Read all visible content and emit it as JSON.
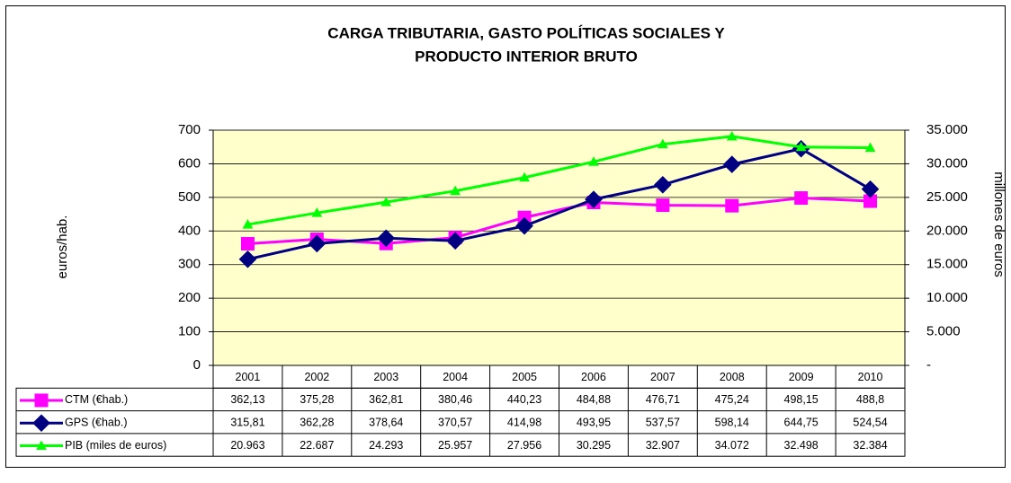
{
  "chart_data": {
    "type": "line",
    "title": [
      "CARGA TRIBUTARIA, GASTO POLÍTICAS SOCIALES Y",
      "PRODUCTO INTERIOR BRUTO"
    ],
    "y_label": "euros/hab.",
    "y2_label": "millones de euros",
    "categories": [
      "2001",
      "2002",
      "2003",
      "2004",
      "2005",
      "2006",
      "2007",
      "2008",
      "2009",
      "2010"
    ],
    "series": [
      {
        "name": "CTM (€hab.)",
        "color": "#ff00ff",
        "marker": "square",
        "values": [
          362.13,
          375.28,
          362.81,
          380.46,
          440.23,
          484.88,
          476.71,
          475.24,
          498.15,
          488.8
        ],
        "value_labels": [
          "362,13",
          "375,28",
          "362,81",
          "380,46",
          "440,23",
          "484,88",
          "476,71",
          "475,24",
          "498,15",
          "488,8"
        ]
      },
      {
        "name": "GPS (€hab.)",
        "color": "#000080",
        "marker": "diamond",
        "values": [
          315.81,
          362.28,
          378.64,
          370.57,
          414.98,
          493.95,
          537.57,
          598.14,
          644.75,
          524.54
        ],
        "value_labels": [
          "315,81",
          "362,28",
          "378,64",
          "370,57",
          "414,98",
          "493,95",
          "537,57",
          "598,14",
          "644,75",
          "524,54"
        ]
      },
      {
        "name": "PIB (miles de euros)",
        "color": "#00ff00",
        "marker": "triangle",
        "axis": "y2",
        "values": [
          20963,
          22687,
          24293,
          25957,
          27956,
          30295,
          32907,
          34072,
          32498,
          32384
        ],
        "value_labels": [
          "20.963",
          "22.687",
          "24.293",
          "25.957",
          "27.956",
          "30.295",
          "32.907",
          "34.072",
          "32.498",
          "32.384"
        ]
      }
    ],
    "ylim": [
      0,
      700
    ],
    "yticks": [
      0,
      100,
      200,
      300,
      400,
      500,
      600,
      700
    ],
    "y2lim": [
      0,
      35000
    ],
    "y2ticks": [
      {
        "value": 0,
        "label": "-"
      },
      {
        "value": 5000,
        "label": "5.000"
      },
      {
        "value": 10000,
        "label": "10.000"
      },
      {
        "value": 15000,
        "label": "15.000"
      },
      {
        "value": 20000,
        "label": "20.000"
      },
      {
        "value": 25000,
        "label": "25.000"
      },
      {
        "value": 30000,
        "label": "30.000"
      },
      {
        "value": 35000,
        "label": "35.000"
      }
    ],
    "grid": true,
    "plot_background": "#ffffcc"
  }
}
